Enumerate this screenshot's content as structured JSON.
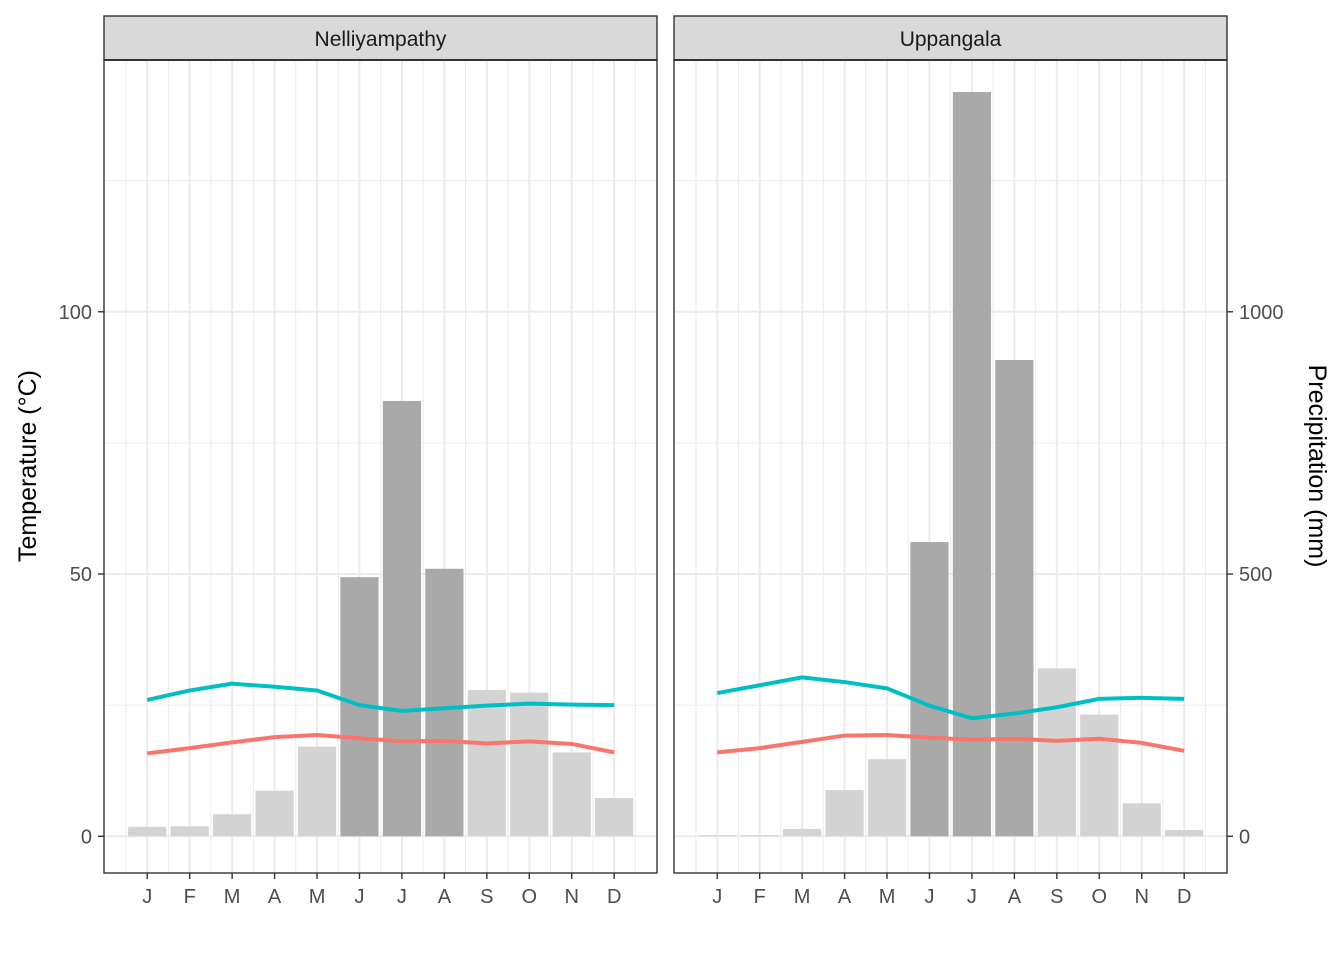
{
  "chart_data": {
    "type": "bar",
    "categories": [
      "J",
      "F",
      "M",
      "A",
      "M",
      "J",
      "J",
      "A",
      "S",
      "O",
      "N",
      "D"
    ],
    "ylabel_left": "Temperature (°C)",
    "ylabel_right": "Precipitation (mm)",
    "y_left_ticks": [
      0,
      50,
      100
    ],
    "y_right_ticks": [
      0,
      500,
      1000
    ],
    "ylim": [
      -7,
      148
    ],
    "precipitation_scale": 10,
    "grid": true,
    "colors": {
      "bar_wet": "#a9a9a9",
      "bar_dry": "#d3d3d3",
      "line_upper": "#00bfc4",
      "line_lower": "#f8766d",
      "strip_bg": "#d9d9d9",
      "grid": "#ebebeb",
      "panel_border": "#333333"
    },
    "panels": [
      {
        "title": "Nelliyampathy",
        "precipitation": [
          18,
          19,
          42,
          87,
          171,
          494,
          830,
          510,
          279,
          274,
          160,
          73
        ],
        "line_upper": [
          26.0,
          27.8,
          29.1,
          28.5,
          27.8,
          25.0,
          23.9,
          24.4,
          24.9,
          25.3,
          25.1,
          25.0
        ],
        "line_lower": [
          15.8,
          16.8,
          17.9,
          18.9,
          19.3,
          18.7,
          18.1,
          18.2,
          17.7,
          18.1,
          17.6,
          16.0
        ]
      },
      {
        "title": "Uppangala",
        "precipitation": [
          2,
          2,
          14,
          88,
          147,
          561,
          1419,
          908,
          320,
          232,
          63,
          12
        ],
        "line_upper": [
          27.3,
          28.8,
          30.3,
          29.4,
          28.2,
          24.9,
          22.5,
          23.4,
          24.6,
          26.2,
          26.4,
          26.2
        ],
        "line_lower": [
          16.0,
          16.8,
          18.0,
          19.2,
          19.3,
          18.8,
          18.4,
          18.6,
          18.2,
          18.6,
          17.8,
          16.3
        ]
      }
    ]
  }
}
